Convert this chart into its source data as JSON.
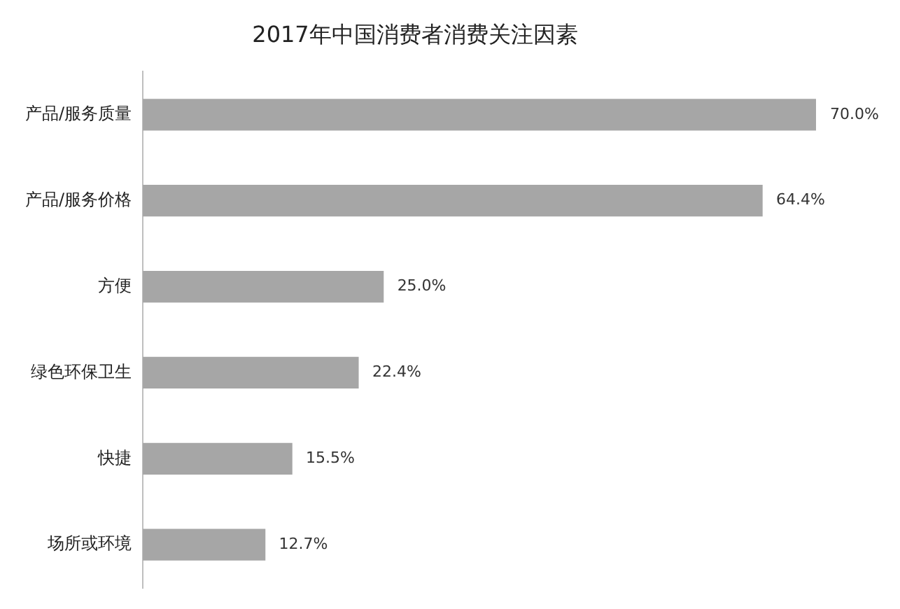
{
  "chart_data": {
    "type": "bar",
    "orientation": "horizontal",
    "title": "2017年中国消费者消费关注因素",
    "categories": [
      "产品/服务质量",
      "产品/服务价格",
      "方便",
      "绿色环保卫生",
      "快捷",
      "场所或环境"
    ],
    "values": [
      70.0,
      64.4,
      25.0,
      22.4,
      15.5,
      12.7
    ],
    "value_labels": [
      "70.0%",
      "64.4%",
      "25.0%",
      "22.4%",
      "15.5%",
      "12.7%"
    ],
    "color": "#a6a6a6"
  }
}
